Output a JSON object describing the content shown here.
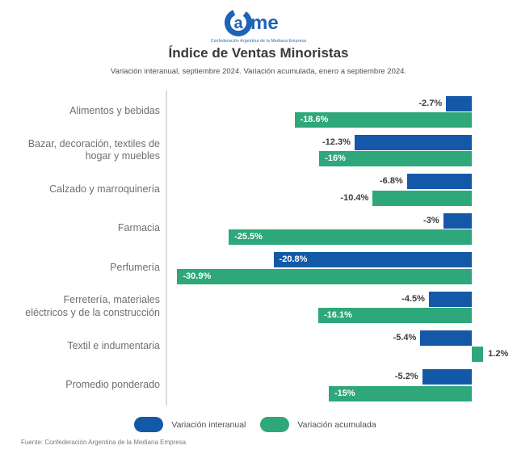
{
  "logo": {
    "brand": "Came",
    "tagline": "Confederación Argentina de la Mediana Empresa",
    "color": "#2063B4"
  },
  "header": {
    "title": "Índice de Ventas Minoristas",
    "subtitle": "Variación interanual, septiembre 2024. Variación acumulada, enero a septiembre 2024."
  },
  "chart_data": {
    "type": "bar",
    "orientation": "horizontal",
    "title": "Índice de Ventas Minoristas",
    "unit": "%",
    "xlim": [
      -32,
      3
    ],
    "grid": false,
    "legend_position": "bottom",
    "categories": [
      "Alimentos y bebidas",
      "Bazar, decoración, textiles de\nhogar y muebles",
      "Calzado y marroquinería",
      "Farmacia",
      "Perfumería",
      "Ferretería, materiales\neléctricos y de la construcción",
      "Textil e indumentaria",
      "Promedio ponderado"
    ],
    "series": [
      {
        "name": "Variación interanual",
        "color": "#1459A8",
        "values": [
          -2.7,
          -12.3,
          -6.8,
          -3,
          -20.8,
          -4.5,
          -5.4,
          -5.2
        ],
        "labels": [
          "-2.7%",
          "-12.3%",
          "-6.8%",
          "-3%",
          "-20.8%",
          "-4.5%",
          "-5.4%",
          "-5.2%"
        ]
      },
      {
        "name": "Variación acumulada",
        "color": "#2EA77A",
        "values": [
          -18.6,
          -16,
          -10.4,
          -25.5,
          -30.9,
          -16.1,
          1.2,
          -15
        ],
        "labels": [
          "-18.6%",
          "-16%",
          "-10.4%",
          "-25.5%",
          "-30.9%",
          "-16.1%",
          "1.2%",
          "-15%"
        ]
      }
    ]
  },
  "footer": {
    "source": "Fuente: Confederación Argentina de la Mediana Empresa"
  }
}
